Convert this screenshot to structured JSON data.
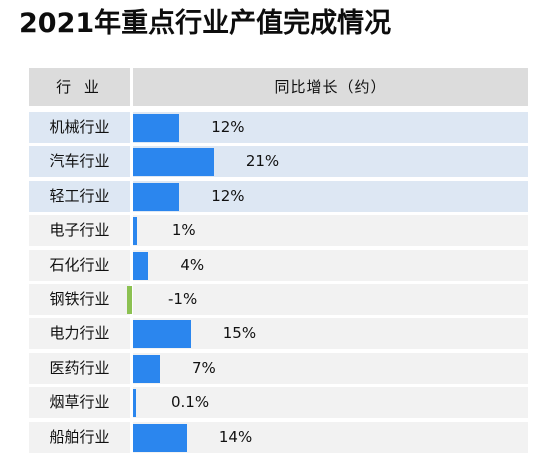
{
  "title": "2021年重点行业产值完成情况",
  "colors": {
    "positive_bar": "#2b86ee",
    "negative_bar": "#8cc152",
    "header_bg": "#dcdcdc",
    "highlight_row_bg": "#dde7f3",
    "plain_row_bg": "#f2f2f2"
  },
  "chart_data": {
    "type": "bar",
    "orientation": "horizontal",
    "title": "2021年重点行业产值完成情况",
    "columns": [
      "行 业",
      "同比增长（约）"
    ],
    "categories": [
      "机械行业",
      "汽车行业",
      "轻工行业",
      "电子行业",
      "石化行业",
      "钢铁行业",
      "电力行业",
      "医药行业",
      "烟草行业",
      "船舶行业"
    ],
    "values": [
      12,
      21,
      12,
      1,
      4,
      -1,
      15,
      7,
      0.1,
      14
    ],
    "value_labels": [
      "12%",
      "21%",
      "12%",
      "1%",
      "4%",
      "-1%",
      "15%",
      "7%",
      "0.1%",
      "14%"
    ],
    "unit": "%",
    "highlighted_categories": [
      "机械行业",
      "汽车行业",
      "轻工行业"
    ]
  }
}
